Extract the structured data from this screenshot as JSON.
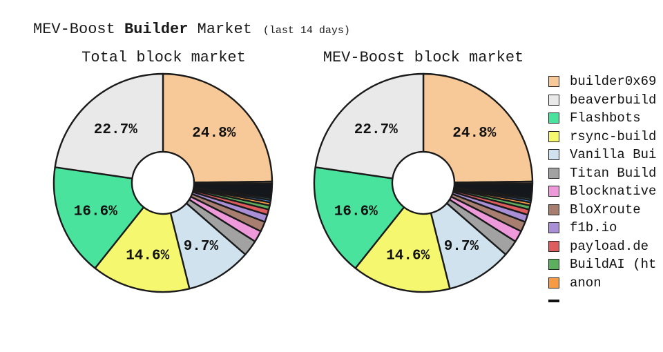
{
  "header": {
    "title_prefix": "MEV-Boost ",
    "title_bold": "Builder",
    "title_suffix": " Market",
    "title_note": "(last 14 days)"
  },
  "colors": {
    "stroke": "#1a1a1a",
    "label_text": "#111111",
    "background": "#ffffff"
  },
  "legend": {
    "items": [
      {
        "label": "builder0x69",
        "color": "#F8C998"
      },
      {
        "label": "beaverbuild",
        "color": "#E9E9E9"
      },
      {
        "label": "Flashbots",
        "color": "#4AE39E"
      },
      {
        "label": "rsync-build",
        "color": "#F5F86E"
      },
      {
        "label": "Vanilla Bui",
        "color": "#CFE2EE"
      },
      {
        "label": "Titan Build",
        "color": "#A2A2A2"
      },
      {
        "label": "Blocknative",
        "color": "#EE9ADA"
      },
      {
        "label": "BloXroute",
        "color": "#A87E70"
      },
      {
        "label": "f1b.io",
        "color": "#A98FD6"
      },
      {
        "label": "payload.de",
        "color": "#DE5C5E"
      },
      {
        "label": "BuildAI (ht",
        "color": "#5DAF60"
      },
      {
        "label": "anon",
        "color": "#F79A46"
      },
      {
        "label": "",
        "color": "#111111",
        "clipped": true
      }
    ]
  },
  "chart_data": [
    {
      "type": "pie",
      "title": "Total block market",
      "donut_hole_ratio": 0.285,
      "start": "top",
      "direction": "clockwise",
      "labeled_percentages": [
        "24.8%",
        "22.7%",
        "16.6%",
        "14.6%",
        "9.7%"
      ],
      "slices": [
        {
          "name": "builder0x69",
          "value": 24.8,
          "color": "#F8C998",
          "label": "24.8%"
        },
        {
          "name": "unlabeled-dark",
          "value": 0.33,
          "color": "#5C4A3C",
          "label": ""
        },
        {
          "name": "others-black",
          "value": 2.1,
          "color": "#14171C",
          "label": ""
        },
        {
          "name": "unlabeled-teal",
          "value": 0.3,
          "color": "#2A7A78",
          "label": ""
        },
        {
          "name": "unlabeled-blue",
          "value": 0.35,
          "color": "#4A7BD0",
          "label": ""
        },
        {
          "name": "anon",
          "value": 0.45,
          "color": "#F79A46",
          "label": ""
        },
        {
          "name": "BuildAI (ht",
          "value": 0.6,
          "color": "#5DAF60",
          "label": ""
        },
        {
          "name": "payload.de",
          "value": 0.8,
          "color": "#DE5C5E",
          "label": ""
        },
        {
          "name": "f1b.io",
          "value": 1.1,
          "color": "#A98FD6",
          "label": ""
        },
        {
          "name": "BloXroute",
          "value": 1.5,
          "color": "#A87E70",
          "label": ""
        },
        {
          "name": "Blocknative",
          "value": 1.7,
          "color": "#EE9ADA",
          "label": ""
        },
        {
          "name": "Titan Build",
          "value": 2.37,
          "color": "#A2A2A2",
          "label": ""
        },
        {
          "name": "Vanilla Bui",
          "value": 9.7,
          "color": "#CFE2EE",
          "label": "9.7%"
        },
        {
          "name": "rsync-build",
          "value": 14.6,
          "color": "#F5F86E",
          "label": "14.6%"
        },
        {
          "name": "Flashbots",
          "value": 16.6,
          "color": "#4AE39E",
          "label": "16.6%"
        },
        {
          "name": "beaverbuild",
          "value": 22.7,
          "color": "#E9E9E9",
          "label": "22.7%"
        }
      ]
    },
    {
      "type": "pie",
      "title": "MEV-Boost block market",
      "donut_hole_ratio": 0.285,
      "start": "top",
      "direction": "clockwise",
      "labeled_percentages": [
        "24.8%",
        "22.7%",
        "16.6%",
        "14.6%",
        "9.7%"
      ],
      "slices": [
        {
          "name": "builder0x69",
          "value": 24.8,
          "color": "#F8C998",
          "label": "24.8%"
        },
        {
          "name": "unlabeled-dark",
          "value": 0.33,
          "color": "#5C4A3C",
          "label": ""
        },
        {
          "name": "others-black",
          "value": 2.1,
          "color": "#14171C",
          "label": ""
        },
        {
          "name": "unlabeled-teal",
          "value": 0.3,
          "color": "#2A7A78",
          "label": ""
        },
        {
          "name": "unlabeled-blue",
          "value": 0.35,
          "color": "#4A7BD0",
          "label": ""
        },
        {
          "name": "anon",
          "value": 0.45,
          "color": "#F79A46",
          "label": ""
        },
        {
          "name": "BuildAI (ht",
          "value": 0.6,
          "color": "#5DAF60",
          "label": ""
        },
        {
          "name": "payload.de",
          "value": 0.8,
          "color": "#DE5C5E",
          "label": ""
        },
        {
          "name": "f1b.io",
          "value": 1.1,
          "color": "#A98FD6",
          "label": ""
        },
        {
          "name": "BloXroute",
          "value": 1.5,
          "color": "#A87E70",
          "label": ""
        },
        {
          "name": "Blocknative",
          "value": 1.7,
          "color": "#EE9ADA",
          "label": ""
        },
        {
          "name": "Titan Build",
          "value": 2.37,
          "color": "#A2A2A2",
          "label": ""
        },
        {
          "name": "Vanilla Bui",
          "value": 9.7,
          "color": "#CFE2EE",
          "label": "9.7%"
        },
        {
          "name": "rsync-build",
          "value": 14.6,
          "color": "#F5F86E",
          "label": "14.6%"
        },
        {
          "name": "Flashbots",
          "value": 16.6,
          "color": "#4AE39E",
          "label": "16.6%"
        },
        {
          "name": "beaverbuild",
          "value": 22.7,
          "color": "#E9E9E9",
          "label": "22.7%"
        }
      ]
    }
  ]
}
